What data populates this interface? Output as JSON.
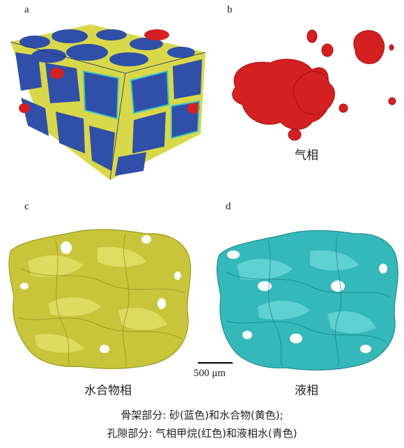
{
  "panels": {
    "a": {
      "label": "a"
    },
    "b": {
      "label": "b",
      "title": "气相"
    },
    "c": {
      "label": "c",
      "title": "水合物相"
    },
    "d": {
      "label": "d",
      "title": "液相"
    }
  },
  "scale_bar": {
    "label": "500 μm"
  },
  "caption": {
    "line1": "骨架部分: 砂(蓝色)和水合物(黄色);",
    "line2": "孔隙部分: 气相甲烷(红色)和液相水(青色)"
  },
  "colors": {
    "sand": "#2f4fa8",
    "hydrate": "#d9d84a",
    "gas": "#d42020",
    "water": "#3cc4c4"
  }
}
